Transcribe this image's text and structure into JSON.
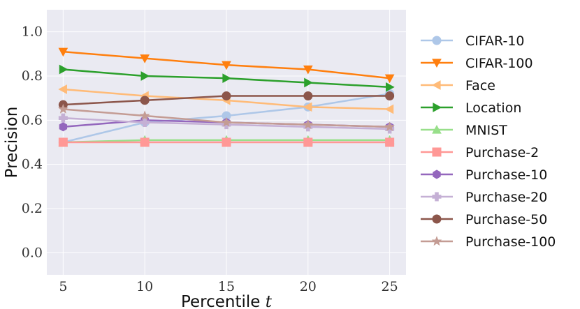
{
  "chart_data": {
    "type": "line",
    "title": "",
    "xlabel": "Percentile",
    "xlabel_var": "t",
    "ylabel": "Precision",
    "x": [
      5,
      10,
      15,
      20,
      25
    ],
    "xlim": [
      4,
      26
    ],
    "ylim": [
      -0.1,
      1.1
    ],
    "xticks": [
      5,
      10,
      15,
      20,
      25
    ],
    "yticks": [
      0.0,
      0.2,
      0.4,
      0.6,
      0.8,
      1.0
    ],
    "xtick_labels": [
      "5",
      "10",
      "15",
      "20",
      "25"
    ],
    "ytick_labels": [
      "0.0",
      "0.2",
      "0.4",
      "0.6",
      "0.8",
      "1.0"
    ],
    "grid": true,
    "legend_position": "right-outside",
    "series": [
      {
        "name": "CIFAR-10",
        "color": "#aec7e8",
        "marker": "circle",
        "values": [
          0.5,
          0.59,
          0.62,
          0.66,
          0.72
        ]
      },
      {
        "name": "CIFAR-100",
        "color": "#ff7f0e",
        "marker": "triangle-down",
        "values": [
          0.91,
          0.88,
          0.85,
          0.83,
          0.79
        ]
      },
      {
        "name": "Face",
        "color": "#ffbb78",
        "marker": "triangle-left",
        "values": [
          0.74,
          0.71,
          0.69,
          0.66,
          0.65
        ]
      },
      {
        "name": "Location",
        "color": "#2ca02c",
        "marker": "triangle-right",
        "values": [
          0.83,
          0.8,
          0.79,
          0.77,
          0.75
        ]
      },
      {
        "name": "MNIST",
        "color": "#98df8a",
        "marker": "triangle-up",
        "values": [
          0.5,
          0.51,
          0.51,
          0.51,
          0.51
        ]
      },
      {
        "name": "Purchase-2",
        "color": "#ff9896",
        "marker": "square",
        "values": [
          0.5,
          0.5,
          0.5,
          0.5,
          0.5
        ]
      },
      {
        "name": "Purchase-10",
        "color": "#9467bd",
        "marker": "hexagon",
        "values": [
          0.57,
          0.6,
          0.59,
          0.58,
          0.57
        ]
      },
      {
        "name": "Purchase-20",
        "color": "#c5b0d5",
        "marker": "plus",
        "values": [
          0.61,
          0.59,
          0.58,
          0.57,
          0.56
        ]
      },
      {
        "name": "Purchase-50",
        "color": "#8c564b",
        "marker": "circle",
        "values": [
          0.67,
          0.69,
          0.71,
          0.71,
          0.71
        ]
      },
      {
        "name": "Purchase-100",
        "color": "#c49c94",
        "marker": "star",
        "values": [
          0.65,
          0.62,
          0.59,
          0.58,
          0.57
        ]
      }
    ]
  }
}
